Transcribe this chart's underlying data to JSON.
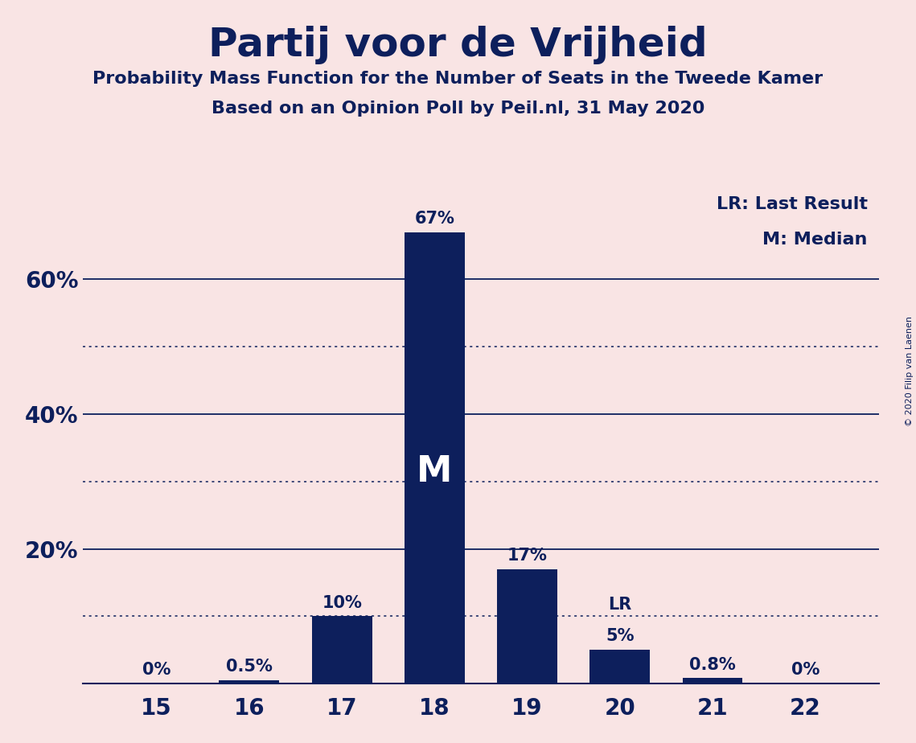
{
  "title": "Partij voor de Vrijheid",
  "subtitle1": "Probability Mass Function for the Number of Seats in the Tweede Kamer",
  "subtitle2": "Based on an Opinion Poll by Peil.nl, 31 May 2020",
  "seats": [
    15,
    16,
    17,
    18,
    19,
    20,
    21,
    22
  ],
  "probabilities": [
    0.0,
    0.5,
    10.0,
    67.0,
    17.0,
    5.0,
    0.8,
    0.0
  ],
  "bar_labels": [
    "0%",
    "0.5%",
    "10%",
    "67%",
    "17%",
    "5%",
    "0.8%",
    "0%"
  ],
  "bar_color": "#0d1f5c",
  "background_color": "#f9e4e4",
  "text_color": "#0d1f5c",
  "median_seat": 18,
  "last_result_seat": 20,
  "legend_text1": "LR: Last Result",
  "legend_text2": "M: Median",
  "median_label": "M",
  "lr_label": "LR",
  "solid_gridlines": [
    0,
    20,
    40,
    60
  ],
  "dotted_gridlines": [
    10,
    30,
    50
  ],
  "ylim": [
    0,
    75
  ],
  "copyright_text": "© 2020 Filip van Laenen",
  "bar_width": 0.65
}
